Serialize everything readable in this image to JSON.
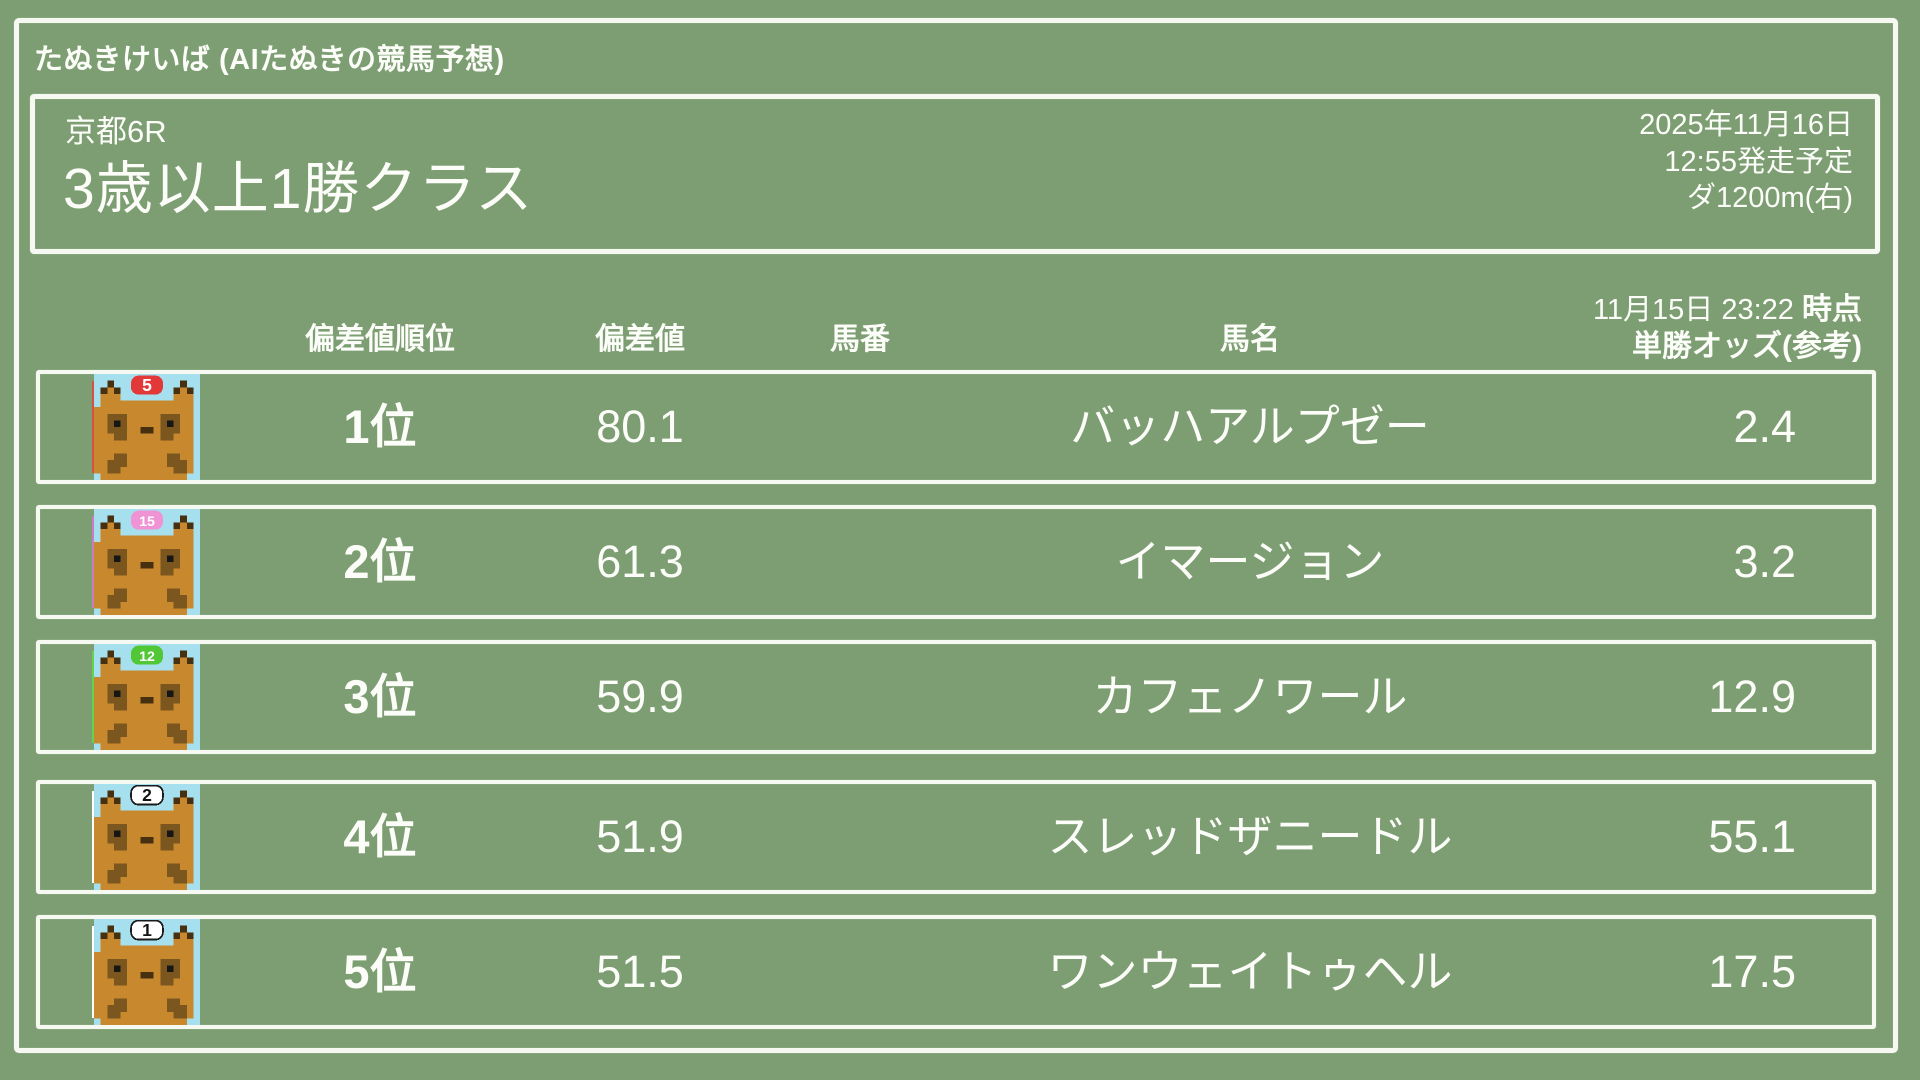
{
  "app": {
    "title": "たぬきけいば (AIたぬきの競馬予想)"
  },
  "race": {
    "track_race": "京都6R",
    "name": "3歳以上1勝クラス",
    "date": "2025年11月16日",
    "start_time": "12:55発走予定",
    "course": "ダ1200m(右)"
  },
  "table": {
    "headers": {
      "rank": "偏差値順位",
      "score": "偏差値",
      "number": "馬番",
      "name": "馬名",
      "odds_time": "11月15日 23:22",
      "odds_time_suffix": "時点",
      "odds_label": "単勝オッズ(参考)"
    },
    "rows": [
      {
        "rank": "1位",
        "score": "80.1",
        "number": "5",
        "number_bg": "#d94f44",
        "cap_bg": "#e23837",
        "cap_text": "#ffffff",
        "cap_border": "none",
        "name": "バッハアルプゼー",
        "odds": "2.4"
      },
      {
        "rank": "2位",
        "score": "61.3",
        "number": "15",
        "number_bg": "#cb7dc4",
        "cap_bg": "#f093d5",
        "cap_text": "#ffffff",
        "cap_border": "none",
        "name": "イマージョン",
        "odds": "3.2"
      },
      {
        "rank": "3位",
        "score": "59.9",
        "number": "12",
        "number_bg": "#5fd54c",
        "cap_bg": "#52c736",
        "cap_text": "#ffffff",
        "cap_border": "none",
        "name": "カフェノワール",
        "odds": "12.9"
      },
      {
        "rank": "4位",
        "score": "51.9",
        "number": "2",
        "number_bg": "#ffffff",
        "cap_bg": "#ffffff",
        "cap_text": "#141414",
        "cap_border": "#1a1a1a",
        "name": "スレッドザニードル",
        "odds": "55.1"
      },
      {
        "rank": "5位",
        "score": "51.5",
        "number": "1",
        "number_bg": "#ffffff",
        "cap_bg": "#ffffff",
        "cap_text": "#141414",
        "cap_border": "#1a1a1a",
        "name": "ワンウェイトゥヘル",
        "odds": "17.5"
      }
    ]
  },
  "colors": {
    "background": "#7c9e72",
    "chalk_border": "#f6f9f1",
    "text": "#fcfdf9",
    "badge_text": "#141414"
  },
  "avatar": {
    "background": "#a6dfee",
    "body": "#c8882e",
    "mask": "#7b561e",
    "ear_tip": "#46300f",
    "eye": "#161616"
  }
}
